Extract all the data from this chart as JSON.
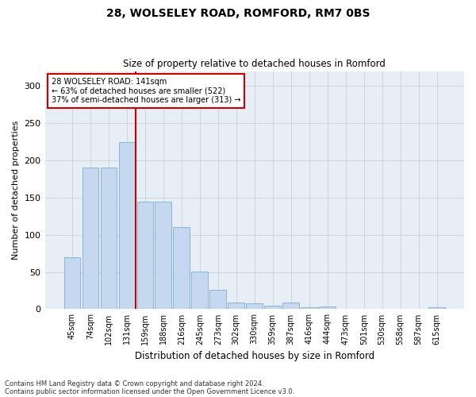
{
  "title1": "28, WOLSELEY ROAD, ROMFORD, RM7 0BS",
  "title2": "Size of property relative to detached houses in Romford",
  "xlabel": "Distribution of detached houses by size in Romford",
  "ylabel": "Number of detached properties",
  "bar_labels": [
    "45sqm",
    "74sqm",
    "102sqm",
    "131sqm",
    "159sqm",
    "188sqm",
    "216sqm",
    "245sqm",
    "273sqm",
    "302sqm",
    "330sqm",
    "359sqm",
    "387sqm",
    "416sqm",
    "444sqm",
    "473sqm",
    "501sqm",
    "530sqm",
    "558sqm",
    "587sqm",
    "615sqm"
  ],
  "bar_values": [
    70,
    190,
    190,
    225,
    145,
    145,
    110,
    51,
    26,
    9,
    8,
    5,
    9,
    3,
    4,
    0,
    0,
    0,
    0,
    0,
    3
  ],
  "bar_color": "#c5d8f0",
  "bar_edge_color": "#7aadd4",
  "vline_color": "#cc0000",
  "annotation_text": "28 WOLSELEY ROAD: 141sqm\n← 63% of detached houses are smaller (522)\n37% of semi-detached houses are larger (313) →",
  "annotation_box_color": "#ffffff",
  "annotation_box_edge": "#cc0000",
  "ylim": [
    0,
    320
  ],
  "yticks": [
    0,
    50,
    100,
    150,
    200,
    250,
    300
  ],
  "background_color": "#ffffff",
  "axes_bg_color": "#e8eef5",
  "grid_color": "#c8d0dc",
  "footer1": "Contains HM Land Registry data © Crown copyright and database right 2024.",
  "footer2": "Contains public sector information licensed under the Open Government Licence v3.0."
}
